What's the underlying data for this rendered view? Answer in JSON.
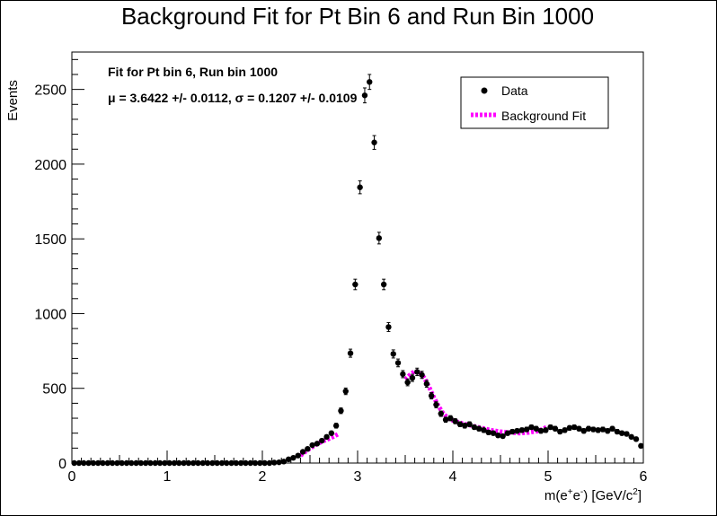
{
  "chart_data": {
    "type": "scatter",
    "title": "Background Fit for Pt Bin 6 and Run Bin 1000",
    "xlabel_main": "m(e",
    "xlabel_sup1": "+",
    "xlabel_mid": "e",
    "xlabel_sup2": "-",
    "xlabel_end": ") [GeV/c",
    "xlabel_sup3": "2",
    "xlabel_close": "]",
    "ylabel": "Events",
    "xlim": [
      0,
      6
    ],
    "ylim": [
      0,
      2750
    ],
    "x_ticks": [
      0,
      1,
      2,
      3,
      4,
      5,
      6
    ],
    "y_ticks": [
      0,
      500,
      1000,
      1500,
      2000,
      2500
    ],
    "annotation_line1": "Fit for Pt bin 6, Run bin 1000",
    "annotation_line2": "μ = 3.6422 +/- 0.0112, σ = 0.1207 +/- 0.0109",
    "legend": [
      {
        "label": "Data",
        "marker": "point"
      },
      {
        "label": "Background Fit",
        "marker": "dashed-line"
      }
    ],
    "legend_position": "top-right",
    "colors": {
      "data": "#000000",
      "fit": "#ff00ff"
    },
    "series": [
      {
        "name": "Data",
        "x": [
          0.025,
          0.075,
          0.125,
          0.175,
          0.225,
          0.275,
          0.325,
          0.375,
          0.425,
          0.475,
          0.525,
          0.575,
          0.625,
          0.675,
          0.725,
          0.775,
          0.825,
          0.875,
          0.925,
          0.975,
          1.025,
          1.075,
          1.125,
          1.175,
          1.225,
          1.275,
          1.325,
          1.375,
          1.425,
          1.475,
          1.525,
          1.575,
          1.625,
          1.675,
          1.725,
          1.775,
          1.825,
          1.875,
          1.925,
          1.975,
          2.025,
          2.075,
          2.125,
          2.175,
          2.225,
          2.275,
          2.325,
          2.375,
          2.425,
          2.475,
          2.525,
          2.575,
          2.625,
          2.675,
          2.725,
          2.775,
          2.825,
          2.875,
          2.925,
          2.975,
          3.025,
          3.075,
          3.125,
          3.175,
          3.225,
          3.275,
          3.325,
          3.375,
          3.425,
          3.475,
          3.525,
          3.575,
          3.625,
          3.675,
          3.725,
          3.775,
          3.825,
          3.875,
          3.925,
          3.975,
          4.025,
          4.075,
          4.125,
          4.175,
          4.225,
          4.275,
          4.325,
          4.375,
          4.425,
          4.475,
          4.525,
          4.575,
          4.625,
          4.675,
          4.725,
          4.775,
          4.825,
          4.875,
          4.925,
          4.975,
          5.025,
          5.075,
          5.125,
          5.175,
          5.225,
          5.275,
          5.325,
          5.375,
          5.425,
          5.475,
          5.525,
          5.575,
          5.625,
          5.675,
          5.725,
          5.775,
          5.825,
          5.875,
          5.925,
          5.975
        ],
        "y": [
          0,
          0,
          0,
          0,
          0,
          0,
          0,
          0,
          0,
          0,
          0,
          0,
          0,
          0,
          0,
          0,
          0,
          0,
          0,
          0,
          0,
          0,
          0,
          0,
          0,
          0,
          0,
          0,
          0,
          0,
          0,
          0,
          0,
          0,
          0,
          0,
          0,
          0,
          0,
          0,
          0,
          0,
          3,
          5,
          10,
          25,
          35,
          50,
          75,
          95,
          120,
          130,
          150,
          175,
          200,
          250,
          350,
          480,
          735,
          1195,
          1845,
          2460,
          2550,
          2145,
          1505,
          1195,
          910,
          730,
          670,
          595,
          540,
          570,
          610,
          590,
          530,
          450,
          390,
          330,
          290,
          300,
          280,
          260,
          250,
          260,
          240,
          230,
          220,
          205,
          200,
          185,
          180,
          200,
          210,
          215,
          220,
          225,
          240,
          230,
          215,
          220,
          240,
          230,
          210,
          220,
          235,
          240,
          230,
          215,
          230,
          225,
          220,
          225,
          215,
          230,
          210,
          200,
          195,
          175,
          160,
          115
        ],
        "err": [
          0,
          0,
          0,
          0,
          0,
          0,
          0,
          0,
          0,
          0,
          0,
          0,
          0,
          0,
          0,
          0,
          0,
          0,
          0,
          0,
          0,
          0,
          0,
          0,
          0,
          0,
          0,
          0,
          0,
          0,
          0,
          0,
          0,
          0,
          0,
          0,
          0,
          0,
          0,
          0,
          0,
          0,
          2,
          2,
          3,
          5,
          6,
          7,
          9,
          10,
          11,
          11,
          12,
          13,
          14,
          16,
          19,
          22,
          27,
          35,
          43,
          50,
          50,
          46,
          39,
          35,
          30,
          27,
          26,
          24,
          23,
          24,
          25,
          24,
          23,
          21,
          20,
          18,
          17,
          17,
          17,
          16,
          16,
          16,
          15,
          15,
          15,
          14,
          14,
          14,
          13,
          14,
          14,
          15,
          15,
          15,
          15,
          15,
          15,
          15,
          15,
          15,
          14,
          15,
          15,
          15,
          15,
          15,
          15,
          15,
          15,
          15,
          15,
          15,
          15,
          14,
          14,
          13,
          13,
          11
        ]
      },
      {
        "name": "Background Fit",
        "x": [
          2.4,
          2.45,
          2.5,
          2.55,
          2.6,
          2.65,
          2.7,
          2.75,
          2.8
        ],
        "y": [
          50,
          75,
          98,
          118,
          135,
          150,
          163,
          178,
          195
        ]
      },
      {
        "name": "Background Fit",
        "x": [
          3.5,
          3.55,
          3.6,
          3.65,
          3.7,
          3.75,
          3.8,
          3.85,
          3.9,
          3.95,
          4.0,
          4.1,
          4.2,
          4.3,
          4.4,
          4.5,
          4.6,
          4.7,
          4.8,
          4.9,
          5.0
        ],
        "y": [
          560,
          590,
          615,
          610,
          570,
          510,
          440,
          380,
          330,
          300,
          285,
          265,
          250,
          235,
          220,
          210,
          205,
          200,
          205,
          215,
          245
        ]
      }
    ]
  }
}
